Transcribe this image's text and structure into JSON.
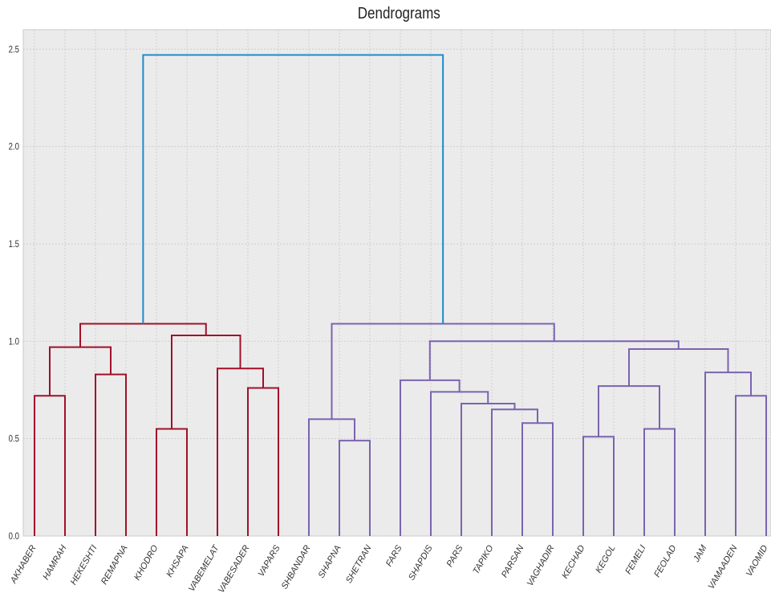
{
  "chart_data": {
    "type": "dendrogram",
    "title": "Dendrograms",
    "xlabel": "",
    "ylabel": "",
    "ylim": [
      0,
      2.6
    ],
    "yticks": [
      "0.0",
      "0.5",
      "1.0",
      "1.5",
      "2.0",
      "2.5"
    ],
    "grid": true,
    "leaves": [
      "AKHABER",
      "HAMRAH",
      "HEKESHTI",
      "REMAPNA",
      "KHODRO",
      "KHSAPA",
      "VABEMELAT",
      "VABESADER",
      "VAPARS",
      "SHBANDAR",
      "SHAPNA",
      "SHETRAN",
      "FARS",
      "SHAPDIS",
      "PARS",
      "TAPIKO",
      "PARSAN",
      "VAGHADIR",
      "KECHAD",
      "KEGOL",
      "FEMELI",
      "FEOLAD",
      "JAM",
      "VAMAADEN",
      "VAOMID"
    ],
    "colors": {
      "cluster1": "#a0102a",
      "cluster2": "#7b63b0",
      "root": "#1f8ac9"
    },
    "merges": [
      {
        "a": 0,
        "b": 1,
        "h": 0.72,
        "color": "cluster1"
      },
      {
        "a": 2,
        "b": 3,
        "h": 0.83,
        "color": "cluster1"
      },
      {
        "a": 25,
        "b": 26,
        "h": 0.97,
        "color": "cluster1"
      },
      {
        "a": 4,
        "b": 5,
        "h": 0.55,
        "color": "cluster1"
      },
      {
        "a": 7,
        "b": 8,
        "h": 0.76,
        "color": "cluster1"
      },
      {
        "a": 6,
        "b": 29,
        "h": 0.86,
        "color": "cluster1"
      },
      {
        "a": 28,
        "b": 30,
        "h": 1.03,
        "color": "cluster1"
      },
      {
        "a": 27,
        "b": 31,
        "h": 1.09,
        "color": "cluster1"
      },
      {
        "a": 10,
        "b": 11,
        "h": 0.49,
        "color": "cluster2"
      },
      {
        "a": 9,
        "b": 33,
        "h": 0.6,
        "color": "cluster2"
      },
      {
        "a": 16,
        "b": 17,
        "h": 0.58,
        "color": "cluster2"
      },
      {
        "a": 15,
        "b": 35,
        "h": 0.65,
        "color": "cluster2"
      },
      {
        "a": 14,
        "b": 36,
        "h": 0.68,
        "color": "cluster2"
      },
      {
        "a": 13,
        "b": 37,
        "h": 0.74,
        "color": "cluster2"
      },
      {
        "a": 12,
        "b": 38,
        "h": 0.8,
        "color": "cluster2"
      },
      {
        "a": 18,
        "b": 19,
        "h": 0.51,
        "color": "cluster2"
      },
      {
        "a": 20,
        "b": 21,
        "h": 0.55,
        "color": "cluster2"
      },
      {
        "a": 40,
        "b": 41,
        "h": 0.77,
        "color": "cluster2"
      },
      {
        "a": 23,
        "b": 24,
        "h": 0.72,
        "color": "cluster2"
      },
      {
        "a": 22,
        "b": 43,
        "h": 0.84,
        "color": "cluster2"
      },
      {
        "a": 42,
        "b": 44,
        "h": 0.96,
        "color": "cluster2"
      },
      {
        "a": 39,
        "b": 45,
        "h": 1.0,
        "color": "cluster2"
      },
      {
        "a": 34,
        "b": 46,
        "h": 1.09,
        "color": "cluster2"
      },
      {
        "a": 32,
        "b": 47,
        "h": 2.47,
        "color": "root"
      }
    ]
  }
}
